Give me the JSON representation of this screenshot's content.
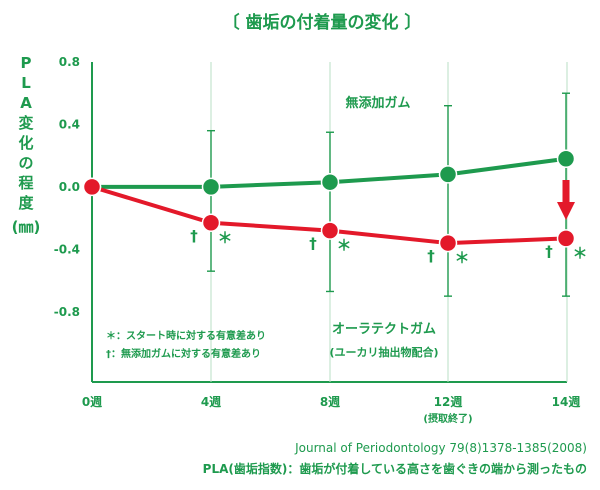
{
  "colors": {
    "accent": "#1e9a4e",
    "series_gum": "#1e9a4e",
    "series_ora": "#e3192a",
    "arrow": "#e3192a",
    "grid": "#b9dfc4"
  },
  "chart_data": {
    "type": "line",
    "title": "〔 歯垢の付着量の変化 〕",
    "ylabel": "PLA変化の程度(㎜)",
    "ylim": [
      -1.25,
      0.8
    ],
    "yticks": [
      0.8,
      0.4,
      0.0,
      -0.4,
      -0.8
    ],
    "ytick_labels": [
      "0.8",
      "0.4",
      "0.0",
      "-0.4",
      "-0.8"
    ],
    "x": [
      0,
      4,
      8,
      12,
      14
    ],
    "xtick_labels": [
      "0週",
      "4週",
      "8週",
      "12週",
      "14週"
    ],
    "xtick_sub": {
      "index": 3,
      "text": "(摂取終了)"
    },
    "grid": "vertical",
    "series": [
      {
        "name": "無添加ガム",
        "values": [
          0.0,
          0.0,
          0.03,
          0.08,
          0.18
        ],
        "error_low": [
          null,
          -0.54,
          -0.67,
          -0.7,
          -0.7
        ],
        "error_high": [
          null,
          0.36,
          0.35,
          0.52,
          0.6
        ]
      },
      {
        "name": "オーラテクトガム",
        "name_sub": "(ユーカリ抽出物配合)",
        "values": [
          0.0,
          -0.23,
          -0.28,
          -0.36,
          -0.33
        ]
      }
    ],
    "significance": {
      "star": "＊",
      "dagger": "†",
      "indices": [
        1,
        2,
        3,
        4
      ]
    },
    "legend": [
      "＊：スタート時に対する有意差あり",
      "†：無添加ガムに対する有意差あり"
    ],
    "arrow_at": 4
  },
  "footer": {
    "citation": "Journal of Periodontology 79(8)1378-1385(2008)",
    "note": "PLA(歯垢指数)：歯垢が付着している高さを歯ぐきの端から測ったもの"
  }
}
